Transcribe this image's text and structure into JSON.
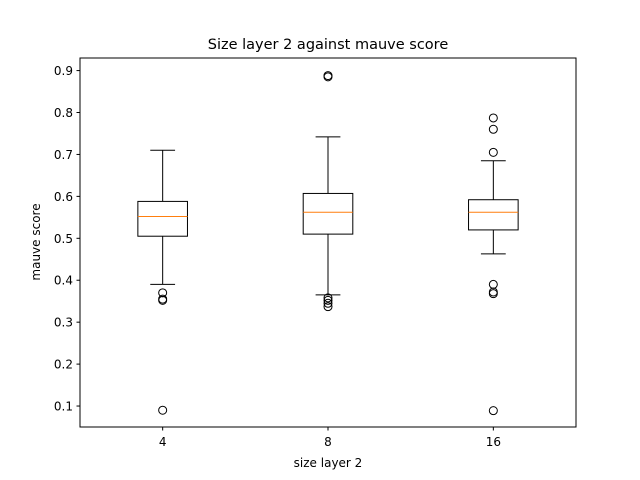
{
  "chart_data": {
    "type": "box",
    "title": "Size layer 2 against mauve score",
    "xlabel": "size layer 2",
    "ylabel": "mauve score",
    "ylim": [
      0.05,
      0.93
    ],
    "yticks": [
      0.1,
      0.2,
      0.3,
      0.4,
      0.5,
      0.6,
      0.7,
      0.8,
      0.9
    ],
    "ytick_labels": [
      "0.1",
      "0.2",
      "0.3",
      "0.4",
      "0.5",
      "0.6",
      "0.7",
      "0.8",
      "0.9"
    ],
    "grid": false,
    "categories": [
      "4",
      "8",
      "16"
    ],
    "boxes": [
      {
        "whisker_low": 0.39,
        "q1": 0.505,
        "median": 0.552,
        "q3": 0.588,
        "whisker_high": 0.71,
        "outliers": [
          0.37,
          0.355,
          0.352,
          0.09
        ]
      },
      {
        "whisker_low": 0.365,
        "q1": 0.51,
        "median": 0.562,
        "q3": 0.607,
        "whisker_high": 0.742,
        "outliers": [
          0.888,
          0.885,
          0.358,
          0.352,
          0.345,
          0.337
        ]
      },
      {
        "whisker_low": 0.463,
        "q1": 0.52,
        "median": 0.562,
        "q3": 0.592,
        "whisker_high": 0.685,
        "outliers": [
          0.787,
          0.76,
          0.705,
          0.39,
          0.372,
          0.368,
          0.089
        ]
      }
    ],
    "colors": {
      "box": "#000000",
      "median": "#ff7f0e"
    }
  }
}
